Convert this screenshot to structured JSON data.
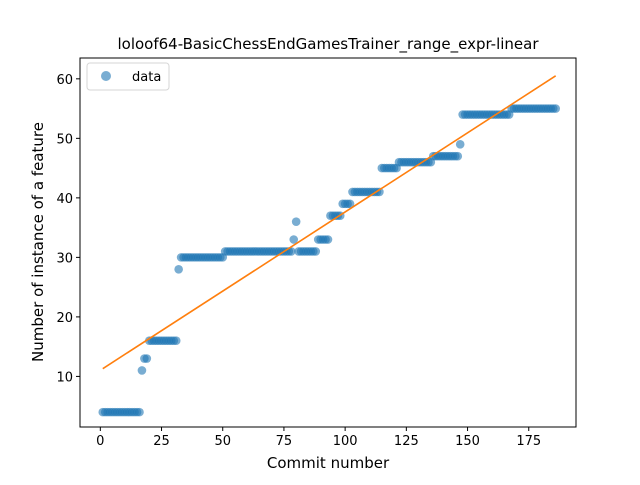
{
  "chart_data": {
    "type": "scatter",
    "title": "loloof64-BasicChessEndGamesTrainer_range_expr-linear",
    "xlabel": "Commit number",
    "ylabel": "Number of instance of a feature",
    "xlim": [
      -8.3,
      194.3
    ],
    "ylim": [
      1.5,
      63.5
    ],
    "xticks": [
      0,
      25,
      50,
      75,
      100,
      125,
      150,
      175
    ],
    "yticks": [
      10,
      20,
      30,
      40,
      50,
      60
    ],
    "grid": false,
    "legend": {
      "placement": "top-left",
      "entries": [
        "data"
      ]
    },
    "colors": {
      "data": "#1f77b4",
      "fit": "#ff7f0e"
    },
    "series": [
      {
        "name": "data",
        "kind": "scatter",
        "points": [
          [
            1,
            4
          ],
          [
            2,
            4
          ],
          [
            3,
            4
          ],
          [
            4,
            4
          ],
          [
            5,
            4
          ],
          [
            6,
            4
          ],
          [
            7,
            4
          ],
          [
            8,
            4
          ],
          [
            9,
            4
          ],
          [
            10,
            4
          ],
          [
            11,
            4
          ],
          [
            12,
            4
          ],
          [
            13,
            4
          ],
          [
            14,
            4
          ],
          [
            15,
            4
          ],
          [
            16,
            4
          ],
          [
            17,
            11
          ],
          [
            18,
            13
          ],
          [
            19,
            13
          ],
          [
            20,
            16
          ],
          [
            21,
            16
          ],
          [
            22,
            16
          ],
          [
            23,
            16
          ],
          [
            24,
            16
          ],
          [
            25,
            16
          ],
          [
            26,
            16
          ],
          [
            27,
            16
          ],
          [
            28,
            16
          ],
          [
            29,
            16
          ],
          [
            30,
            16
          ],
          [
            31,
            16
          ],
          [
            32,
            28
          ],
          [
            33,
            30
          ],
          [
            34,
            30
          ],
          [
            35,
            30
          ],
          [
            36,
            30
          ],
          [
            37,
            30
          ],
          [
            38,
            30
          ],
          [
            39,
            30
          ],
          [
            40,
            30
          ],
          [
            41,
            30
          ],
          [
            42,
            30
          ],
          [
            43,
            30
          ],
          [
            44,
            30
          ],
          [
            45,
            30
          ],
          [
            46,
            30
          ],
          [
            47,
            30
          ],
          [
            48,
            30
          ],
          [
            49,
            30
          ],
          [
            50,
            30
          ],
          [
            51,
            31
          ],
          [
            52,
            31
          ],
          [
            53,
            31
          ],
          [
            54,
            31
          ],
          [
            55,
            31
          ],
          [
            56,
            31
          ],
          [
            57,
            31
          ],
          [
            58,
            31
          ],
          [
            59,
            31
          ],
          [
            60,
            31
          ],
          [
            61,
            31
          ],
          [
            62,
            31
          ],
          [
            63,
            31
          ],
          [
            64,
            31
          ],
          [
            65,
            31
          ],
          [
            66,
            31
          ],
          [
            67,
            31
          ],
          [
            68,
            31
          ],
          [
            69,
            31
          ],
          [
            70,
            31
          ],
          [
            71,
            31
          ],
          [
            72,
            31
          ],
          [
            73,
            31
          ],
          [
            74,
            31
          ],
          [
            75,
            31
          ],
          [
            76,
            31
          ],
          [
            77,
            31
          ],
          [
            78,
            31
          ],
          [
            79,
            33
          ],
          [
            80,
            36
          ],
          [
            81,
            31
          ],
          [
            82,
            31
          ],
          [
            83,
            31
          ],
          [
            84,
            31
          ],
          [
            85,
            31
          ],
          [
            86,
            31
          ],
          [
            87,
            31
          ],
          [
            88,
            31
          ],
          [
            89,
            33
          ],
          [
            90,
            33
          ],
          [
            91,
            33
          ],
          [
            92,
            33
          ],
          [
            93,
            33
          ],
          [
            94,
            37
          ],
          [
            95,
            37
          ],
          [
            96,
            37
          ],
          [
            97,
            37
          ],
          [
            98,
            37
          ],
          [
            99,
            39
          ],
          [
            100,
            39
          ],
          [
            101,
            39
          ],
          [
            102,
            39
          ],
          [
            103,
            41
          ],
          [
            104,
            41
          ],
          [
            105,
            41
          ],
          [
            106,
            41
          ],
          [
            107,
            41
          ],
          [
            108,
            41
          ],
          [
            109,
            41
          ],
          [
            110,
            41
          ],
          [
            111,
            41
          ],
          [
            112,
            41
          ],
          [
            113,
            41
          ],
          [
            114,
            41
          ],
          [
            115,
            45
          ],
          [
            116,
            45
          ],
          [
            117,
            45
          ],
          [
            118,
            45
          ],
          [
            119,
            45
          ],
          [
            120,
            45
          ],
          [
            121,
            45
          ],
          [
            122,
            46
          ],
          [
            123,
            46
          ],
          [
            124,
            46
          ],
          [
            125,
            46
          ],
          [
            126,
            46
          ],
          [
            127,
            46
          ],
          [
            128,
            46
          ],
          [
            129,
            46
          ],
          [
            130,
            46
          ],
          [
            131,
            46
          ],
          [
            132,
            46
          ],
          [
            133,
            46
          ],
          [
            134,
            46
          ],
          [
            135,
            46
          ],
          [
            136,
            47
          ],
          [
            137,
            47
          ],
          [
            138,
            47
          ],
          [
            139,
            47
          ],
          [
            140,
            47
          ],
          [
            141,
            47
          ],
          [
            142,
            47
          ],
          [
            143,
            47
          ],
          [
            144,
            47
          ],
          [
            145,
            47
          ],
          [
            146,
            47
          ],
          [
            147,
            49
          ],
          [
            148,
            54
          ],
          [
            149,
            54
          ],
          [
            150,
            54
          ],
          [
            151,
            54
          ],
          [
            152,
            54
          ],
          [
            153,
            54
          ],
          [
            154,
            54
          ],
          [
            155,
            54
          ],
          [
            156,
            54
          ],
          [
            157,
            54
          ],
          [
            158,
            54
          ],
          [
            159,
            54
          ],
          [
            160,
            54
          ],
          [
            161,
            54
          ],
          [
            162,
            54
          ],
          [
            163,
            54
          ],
          [
            164,
            54
          ],
          [
            165,
            54
          ],
          [
            166,
            54
          ],
          [
            167,
            54
          ],
          [
            168,
            55
          ],
          [
            169,
            55
          ],
          [
            170,
            55
          ],
          [
            171,
            55
          ],
          [
            172,
            55
          ],
          [
            173,
            55
          ],
          [
            174,
            55
          ],
          [
            175,
            55
          ],
          [
            176,
            55
          ],
          [
            177,
            55
          ],
          [
            178,
            55
          ],
          [
            179,
            55
          ],
          [
            180,
            55
          ],
          [
            181,
            55
          ],
          [
            182,
            55
          ],
          [
            183,
            55
          ],
          [
            184,
            55
          ],
          [
            185,
            55
          ],
          [
            186,
            55
          ]
        ]
      },
      {
        "kind": "line",
        "points": [
          [
            1,
            11.3
          ],
          [
            186,
            60.5
          ]
        ]
      }
    ]
  }
}
